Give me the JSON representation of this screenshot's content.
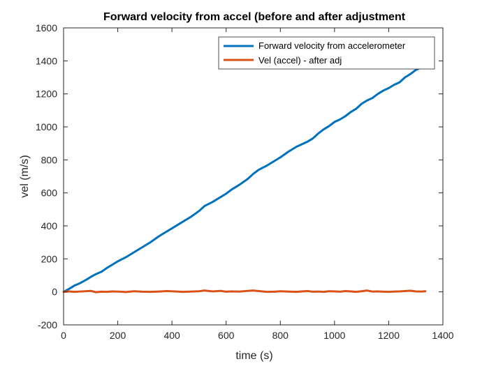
{
  "chart_data": {
    "type": "line",
    "title": "Forward velocity from accel (before and after adjustment",
    "xlabel": "time (s)",
    "ylabel": "vel (m/s)",
    "xlim": [
      0,
      1400
    ],
    "ylim": [
      -200,
      1600
    ],
    "xticks": [
      0,
      200,
      400,
      600,
      800,
      1000,
      1200,
      1400
    ],
    "yticks": [
      -200,
      0,
      200,
      400,
      600,
      800,
      1000,
      1200,
      1400,
      1600
    ],
    "grid": false,
    "legend_position": "top-right",
    "series": [
      {
        "name": "Forward velocity from accelerometer",
        "color": "#0072BD",
        "x": [
          0,
          20,
          40,
          60,
          80,
          100,
          120,
          140,
          160,
          180,
          200,
          230,
          260,
          290,
          320,
          350,
          380,
          410,
          440,
          470,
          500,
          520,
          550,
          580,
          600,
          620,
          650,
          680,
          700,
          720,
          750,
          780,
          800,
          830,
          860,
          880,
          900,
          920,
          940,
          960,
          980,
          1000,
          1020,
          1040,
          1060,
          1080,
          1100,
          1120,
          1140,
          1160,
          1180,
          1200,
          1220,
          1240,
          1260,
          1280,
          1300,
          1320,
          1335
        ],
        "y": [
          0,
          18,
          38,
          52,
          70,
          90,
          108,
          122,
          145,
          165,
          185,
          210,
          240,
          270,
          300,
          335,
          365,
          395,
          425,
          455,
          490,
          520,
          545,
          575,
          595,
          620,
          650,
          685,
          715,
          740,
          765,
          795,
          815,
          850,
          880,
          895,
          910,
          930,
          960,
          985,
          1005,
          1030,
          1045,
          1065,
          1090,
          1110,
          1140,
          1160,
          1175,
          1200,
          1220,
          1235,
          1255,
          1270,
          1300,
          1320,
          1345,
          1360,
          1360
        ]
      },
      {
        "name": "Vel (accel) - after adj",
        "color": "#D95319",
        "x": [
          0,
          20,
          40,
          60,
          80,
          100,
          120,
          140,
          160,
          180,
          200,
          230,
          260,
          290,
          320,
          350,
          380,
          410,
          440,
          470,
          500,
          520,
          550,
          580,
          600,
          620,
          650,
          680,
          700,
          720,
          750,
          780,
          800,
          830,
          860,
          880,
          900,
          920,
          940,
          960,
          980,
          1000,
          1020,
          1040,
          1060,
          1080,
          1100,
          1120,
          1140,
          1160,
          1180,
          1200,
          1220,
          1240,
          1260,
          1280,
          1300,
          1320,
          1335
        ],
        "y": [
          0,
          3,
          0,
          2,
          4,
          6,
          -2,
          1,
          0,
          3,
          2,
          -1,
          4,
          1,
          0,
          2,
          5,
          3,
          0,
          2,
          4,
          8,
          3,
          6,
          1,
          3,
          2,
          6,
          8,
          5,
          0,
          1,
          4,
          2,
          0,
          3,
          5,
          1,
          2,
          0,
          4,
          3,
          1,
          5,
          3,
          0,
          4,
          8,
          2,
          3,
          1,
          0,
          2,
          3,
          5,
          7,
          3,
          2,
          4
        ]
      }
    ]
  }
}
